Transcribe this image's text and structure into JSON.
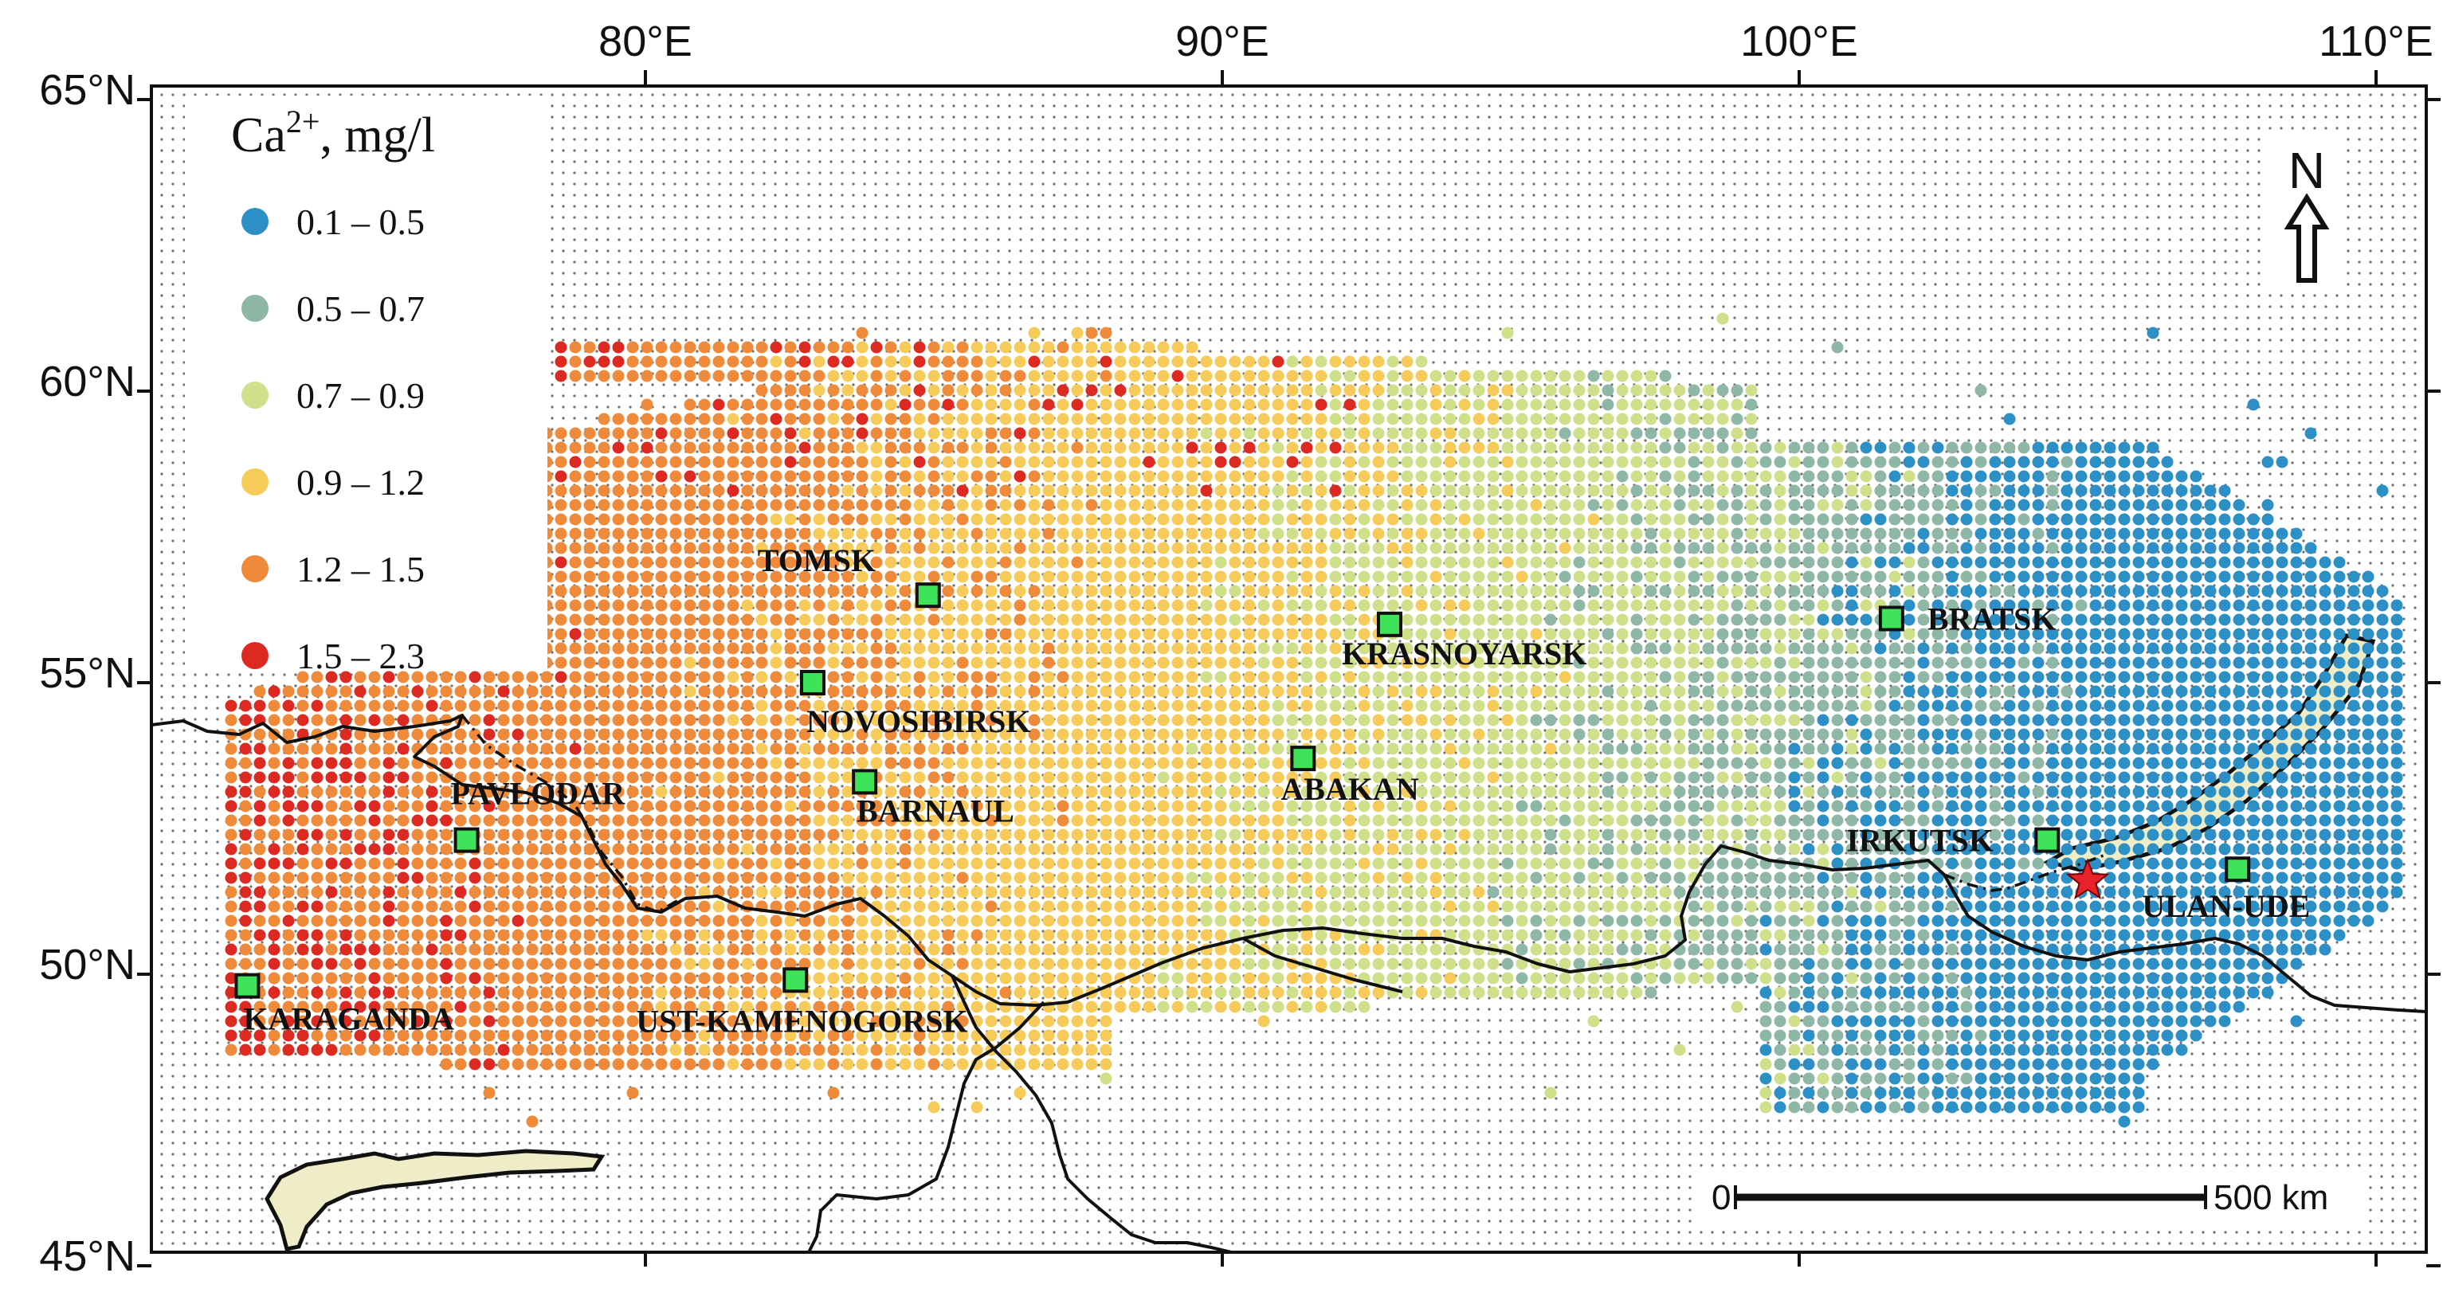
{
  "axes": {
    "lon_ticks": [
      "80°E",
      "90°E",
      "100°E",
      "110°E"
    ],
    "lat_ticks": [
      "65°N",
      "60°N",
      "55°N",
      "50°N",
      "45°N"
    ]
  },
  "legend": {
    "title_base": "Ca",
    "title_sup": "2+",
    "title_unit": ", mg/l",
    "classes": [
      {
        "label": "0.1 – 0.5",
        "color": "#2c8fc6"
      },
      {
        "label": "0.5 – 0.7",
        "color": "#8fb7a6"
      },
      {
        "label": "0.7 – 0.9",
        "color": "#cfe08a"
      },
      {
        "label": "0.9 – 1.2",
        "color": "#f7cb5a"
      },
      {
        "label": "1.2 – 1.5",
        "color": "#ef8a3a"
      },
      {
        "label": "1.5 – 2.3",
        "color": "#dc2a22"
      }
    ]
  },
  "cities": [
    {
      "name": "TOMSK",
      "lon": 84.9,
      "lat": 56.5
    },
    {
      "name": "NOVOSIBIRSK",
      "lon": 82.9,
      "lat": 55.0
    },
    {
      "name": "KRASNOYARSK",
      "lon": 92.9,
      "lat": 56.0
    },
    {
      "name": "BRATSK",
      "lon": 101.6,
      "lat": 56.1
    },
    {
      "name": "PAVLODAR",
      "lon": 76.9,
      "lat": 52.3
    },
    {
      "name": "BARNAUL",
      "lon": 83.8,
      "lat": 53.3
    },
    {
      "name": "ABAKAN",
      "lon": 91.4,
      "lat": 53.7
    },
    {
      "name": "IRKUTSK",
      "lon": 104.3,
      "lat": 52.3
    },
    {
      "name": "ULAN-UDE",
      "lon": 107.6,
      "lat": 51.8
    },
    {
      "name": "KARAGANDA",
      "lon": 73.1,
      "lat": 49.8
    },
    {
      "name": "UST-KAMENOGORSK",
      "lon": 82.6,
      "lat": 49.9
    }
  ],
  "marker": {
    "type": "star",
    "lon": 105.0,
    "lat": 51.6
  },
  "north_arrow": {
    "label": "N"
  },
  "scale_bar": {
    "start_label": "0",
    "end_label": "500 km"
  }
}
